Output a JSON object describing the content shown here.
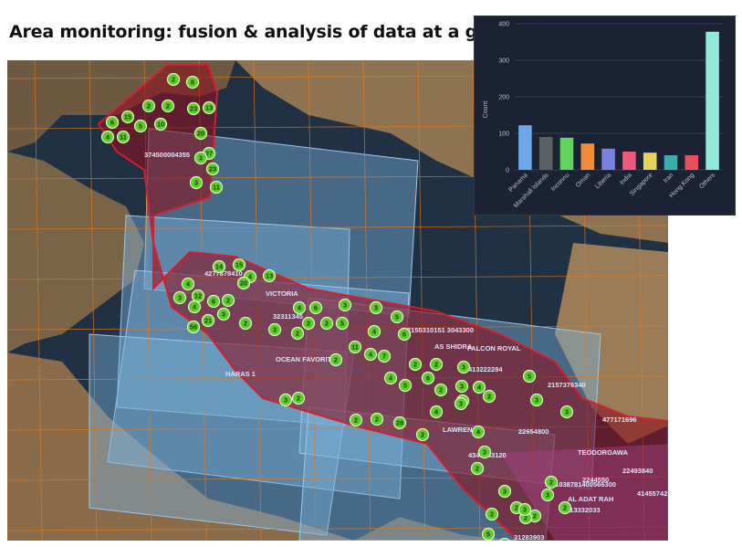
{
  "title": "Area monitoring: fusion & analysis of data at a glance",
  "colors": {
    "sea": "#1c2d3d",
    "land": "#8a7050",
    "grid": "#e07a20",
    "zone_fill": "#8a1020",
    "satellite_tile": "#7ab0d8",
    "marker": "#5ecb2a",
    "panel_bg": "#1b2233"
  },
  "ship_labels": [
    "374500004355",
    "4277878410",
    "VICTORIA",
    "32311345",
    "2155310151 3043300",
    "AS SHIDRA",
    "FALCON ROYAL",
    "OCEAN FAVORITE",
    "HARAS 1",
    "413222284",
    "2157376340",
    "LAWRENCE",
    "22654800",
    "477171696",
    "TEODORGAWA",
    "4343243120",
    "22493840",
    "51038781400566300",
    "AL ADAT RAH",
    "613332033",
    "2244550",
    "41455742",
    "31283903"
  ],
  "markers": [
    {
      "value": "2"
    },
    {
      "value": "8"
    },
    {
      "value": "2"
    },
    {
      "value": "2"
    },
    {
      "value": "23"
    },
    {
      "value": "13"
    },
    {
      "value": "6"
    },
    {
      "value": "15"
    },
    {
      "value": "5"
    },
    {
      "value": "10"
    },
    {
      "value": "4"
    },
    {
      "value": "11"
    },
    {
      "value": "20"
    },
    {
      "value": "27"
    },
    {
      "value": "3"
    },
    {
      "value": "23"
    },
    {
      "value": "3"
    },
    {
      "value": "11"
    },
    {
      "value": "14"
    },
    {
      "value": "15"
    },
    {
      "value": "4"
    },
    {
      "value": "13"
    },
    {
      "value": "20"
    },
    {
      "value": "4"
    },
    {
      "value": "12"
    },
    {
      "value": "6"
    },
    {
      "value": "3"
    },
    {
      "value": "4"
    },
    {
      "value": "21"
    },
    {
      "value": "56"
    },
    {
      "value": "2"
    },
    {
      "value": "3"
    },
    {
      "value": "2"
    },
    {
      "value": "3"
    },
    {
      "value": "2"
    },
    {
      "value": "6"
    },
    {
      "value": "4"
    },
    {
      "value": "2"
    },
    {
      "value": "2"
    },
    {
      "value": "3"
    },
    {
      "value": "3"
    },
    {
      "value": "5"
    },
    {
      "value": "6"
    },
    {
      "value": "4"
    },
    {
      "value": "11"
    },
    {
      "value": "4"
    },
    {
      "value": "7"
    },
    {
      "value": "5"
    },
    {
      "value": "2"
    },
    {
      "value": "4"
    },
    {
      "value": "2"
    },
    {
      "value": "2"
    },
    {
      "value": "3"
    },
    {
      "value": "6"
    },
    {
      "value": "5"
    },
    {
      "value": "3"
    },
    {
      "value": "5"
    },
    {
      "value": "2"
    },
    {
      "value": "2"
    },
    {
      "value": "4"
    },
    {
      "value": "3"
    },
    {
      "value": "3"
    },
    {
      "value": "4"
    },
    {
      "value": "2"
    },
    {
      "value": "2"
    },
    {
      "value": "28"
    },
    {
      "value": "2"
    },
    {
      "value": "3"
    },
    {
      "value": "2"
    },
    {
      "value": "4"
    },
    {
      "value": "3"
    },
    {
      "value": "4"
    },
    {
      "value": "3"
    },
    {
      "value": "2"
    },
    {
      "value": "3"
    },
    {
      "value": "2"
    },
    {
      "value": "2"
    },
    {
      "value": "3"
    },
    {
      "value": "2"
    },
    {
      "value": "5"
    },
    {
      "value": "3"
    },
    {
      "value": "2"
    },
    {
      "value": "2"
    },
    {
      "value": "2"
    },
    {
      "value": "3"
    }
  ],
  "chart_data": {
    "type": "bar",
    "title": "",
    "xlabel": "",
    "ylabel": "Count",
    "ylim": [
      0,
      400
    ],
    "yticks": [
      0,
      100,
      200,
      300,
      400
    ],
    "grid": true,
    "categories": [
      "Panama",
      "Marshall Islands",
      "Inconnu",
      "Oman",
      "Liberia",
      "India",
      "Singapore",
      "Iran",
      "Hong Kong",
      "Others"
    ],
    "values": [
      122,
      90,
      88,
      72,
      58,
      50,
      47,
      40,
      40,
      378
    ],
    "colors": [
      "#6fa8e8",
      "#5b5f66",
      "#5fd35a",
      "#f28c3a",
      "#7a80e0",
      "#ee5a7a",
      "#e8d45a",
      "#3ab0a8",
      "#e8505a",
      "#8fe8d8"
    ]
  }
}
